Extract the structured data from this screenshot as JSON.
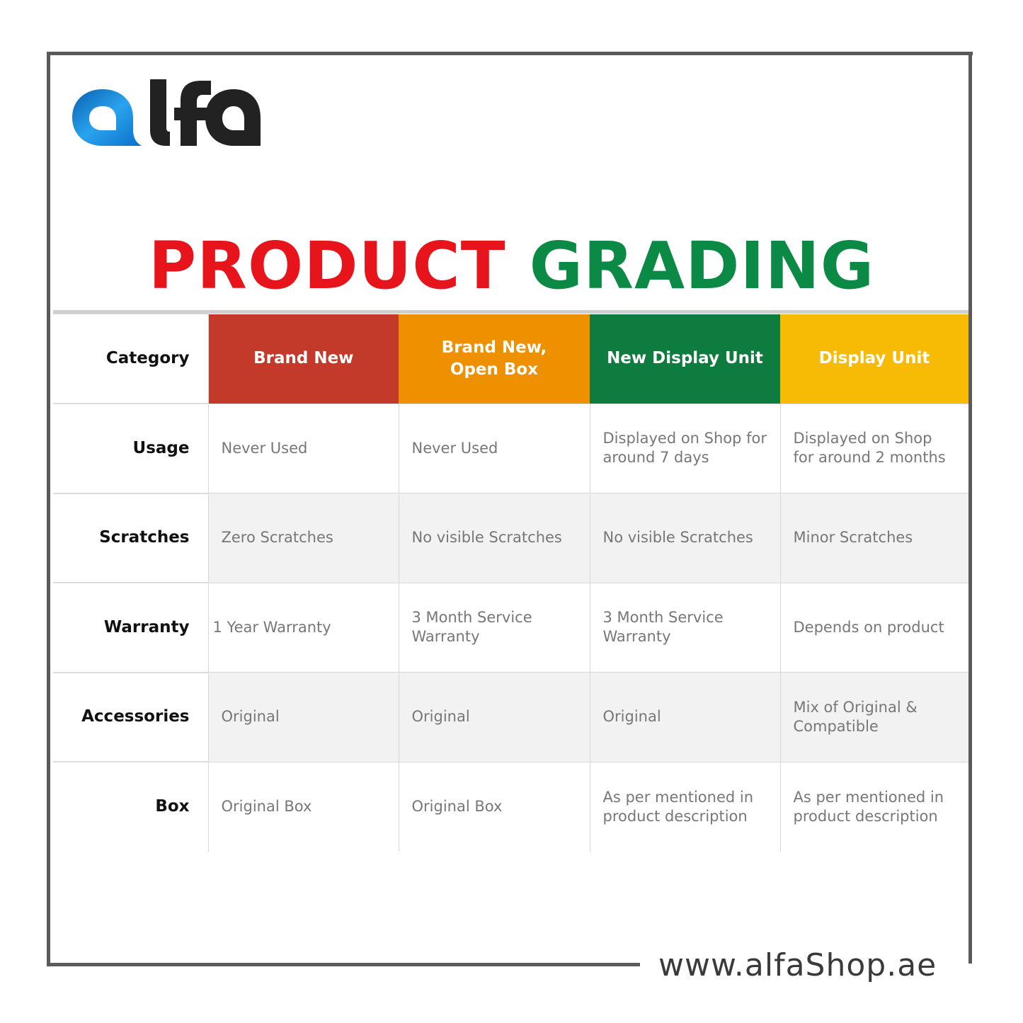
{
  "logo": {
    "text": "alfa",
    "colors": {
      "a": "#1a8fe0",
      "lfa": "#222222"
    }
  },
  "title": {
    "part1": "PRODUCT",
    "part2": "GRADING",
    "color1": "#e8141b",
    "color2": "#0b8a45"
  },
  "table": {
    "corner": "Category",
    "columns": [
      {
        "label": "Brand New",
        "color": "#c43a2a"
      },
      {
        "label": "Brand New, Open Box",
        "color": "#ef9000"
      },
      {
        "label": "New Display Unit",
        "color": "#0e7c3f"
      },
      {
        "label": "Display Unit",
        "color": "#f8bb05"
      }
    ],
    "rows": [
      {
        "label": "Usage",
        "cells": [
          "Never Used",
          "Never Used",
          "Displayed on Shop for around 7 days",
          "Displayed on Shop for around 2 months"
        ]
      },
      {
        "label": "Scratches",
        "cells": [
          "Zero Scratches",
          "No visible Scratches",
          "No visible Scratches",
          "Minor Scratches"
        ]
      },
      {
        "label": "Warranty",
        "cells": [
          "1 Year Warranty",
          "3 Month Service Warranty",
          "3 Month Service Warranty",
          "Depends on product"
        ]
      },
      {
        "label": "Accessories",
        "cells": [
          "Original",
          "Original",
          "Original",
          "Mix of Original & Compatible"
        ]
      },
      {
        "label": "Box",
        "cells": [
          "Original Box",
          "Original Box",
          "As per mentioned in product description",
          "As per mentioned in product description"
        ]
      }
    ]
  },
  "footer": {
    "url": "www.alfaShop.ae"
  }
}
